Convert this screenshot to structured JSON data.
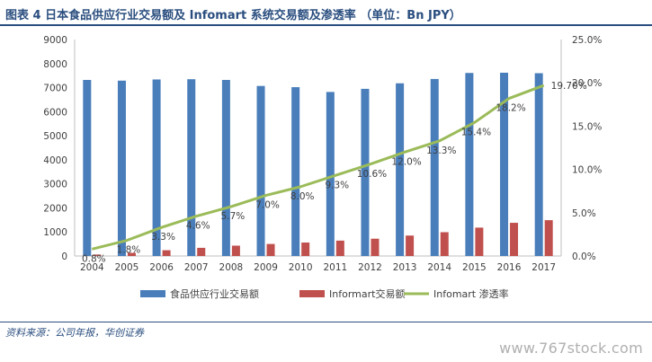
{
  "title": "图表 4  日本食品供应行业交易额及 Infomart 系统交易额及渗透率  （单位：Bn JPY）",
  "source": "资料来源：公司年报，华创证券",
  "watermark": "www.767stock.com",
  "chart_data": {
    "type": "bar",
    "categories": [
      "2004",
      "2005",
      "2006",
      "2007",
      "2008",
      "2009",
      "2010",
      "2011",
      "2012",
      "2013",
      "2014",
      "2015",
      "2016",
      "2017"
    ],
    "series": [
      {
        "name": "食品供应行业交易额",
        "kind": "bar",
        "axis": "left",
        "color": "#4a7ebb",
        "values": [
          7320,
          7290,
          7340,
          7350,
          7320,
          7070,
          7020,
          6820,
          6950,
          7180,
          7360,
          7610,
          7620,
          7600
        ]
      },
      {
        "name": "Informart交易额",
        "kind": "bar",
        "axis": "left",
        "color": "#c0504d",
        "values": [
          60,
          130,
          240,
          340,
          430,
          500,
          560,
          640,
          720,
          850,
          990,
          1180,
          1380,
          1490
        ]
      },
      {
        "name": "Infomart 渗透率",
        "kind": "line",
        "axis": "right",
        "color": "#9bbb59",
        "values": [
          0.8,
          1.8,
          3.3,
          4.6,
          5.7,
          7.0,
          8.0,
          9.3,
          10.6,
          12.0,
          13.3,
          15.4,
          18.2,
          19.7
        ]
      }
    ],
    "rate_labels": [
      "0.8%",
      "1.8%",
      "3.3%",
      "4.6%",
      "5.7%",
      "7.0%",
      "8.0%",
      "9.3%",
      "10.6%",
      "12.0%",
      "13.3%",
      "15.4%",
      "18.2%",
      "19.70%"
    ],
    "ylim_left": [
      0,
      9000
    ],
    "yticks_left": [
      "0",
      "1000",
      "2000",
      "3000",
      "4000",
      "5000",
      "6000",
      "7000",
      "8000",
      "9000"
    ],
    "ylim_right": [
      0,
      25
    ],
    "yticks_right": [
      "0.0%",
      "5.0%",
      "10.0%",
      "15.0%",
      "20.0%",
      "25.0%"
    ],
    "grid": false,
    "legend": "bottom"
  }
}
